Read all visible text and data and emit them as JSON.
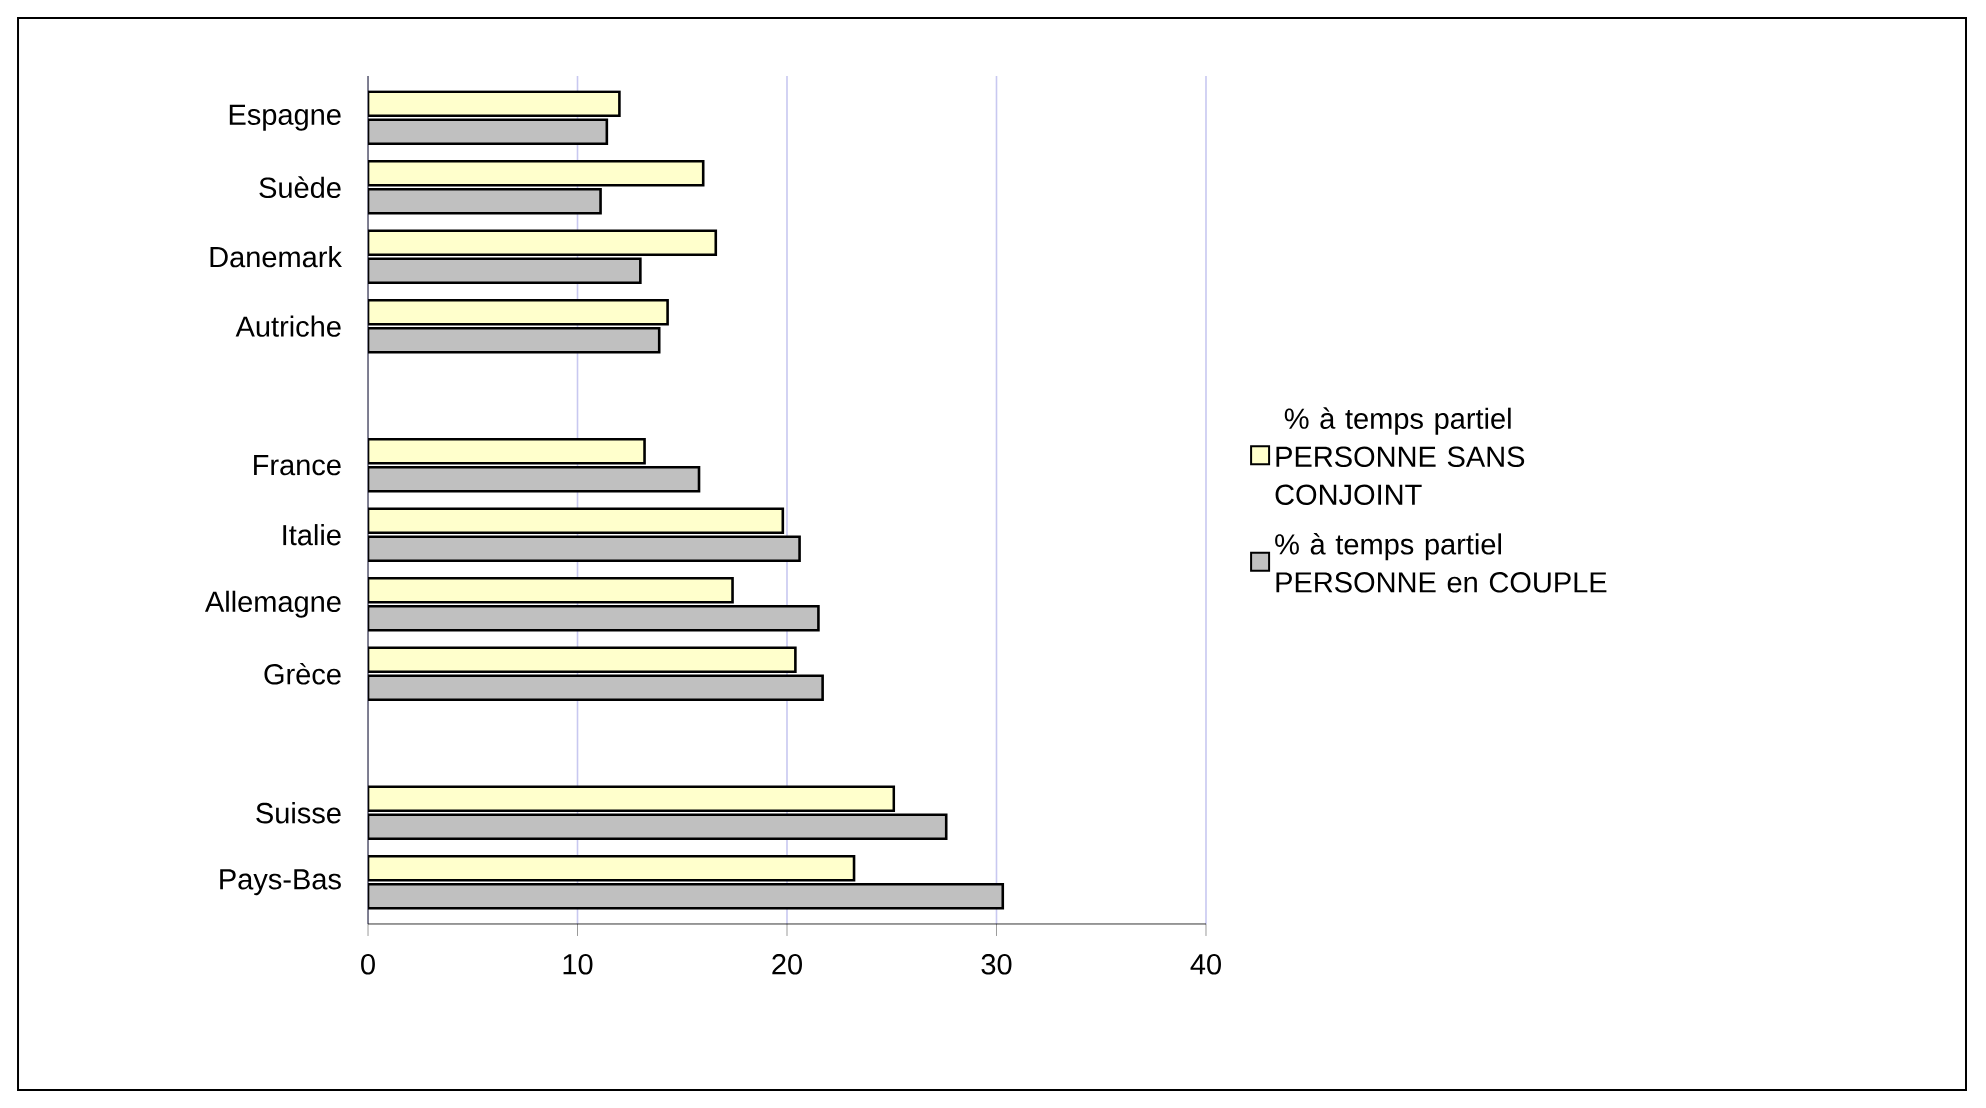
{
  "chart_data": {
    "type": "bar",
    "orientation": "horizontal",
    "categories": [
      "Espagne",
      "Suède",
      "Danemark",
      "Autriche",
      null,
      "France",
      "Italie",
      "Allemagne",
      "Grèce",
      null,
      "Suisse",
      "Pays-Bas"
    ],
    "series": [
      {
        "name": " % à temps partiel PERSONNE SANS CONJOINT",
        "color": "#ffffcc",
        "values": [
          12.0,
          16.0,
          16.6,
          14.3,
          null,
          13.2,
          19.8,
          17.4,
          20.4,
          null,
          25.1,
          23.2
        ]
      },
      {
        "name": "% à temps partiel PERSONNE en COUPLE",
        "color": "#c0c0c0",
        "values": [
          11.4,
          11.1,
          13.0,
          13.9,
          null,
          15.8,
          20.6,
          21.5,
          21.7,
          null,
          27.6,
          30.3
        ]
      }
    ],
    "xlim": [
      0,
      40
    ],
    "xticks": [
      0,
      10,
      20,
      30,
      40
    ],
    "grid": "x",
    "legend": "right"
  }
}
